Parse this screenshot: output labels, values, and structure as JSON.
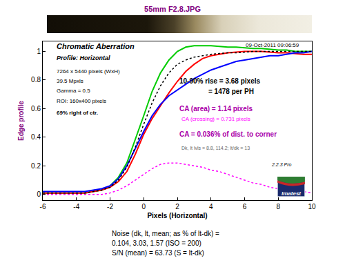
{
  "chart_data": {
    "type": "line",
    "title": "55mm F2.8.JPG",
    "x_label": "Pixels (Horizontal)",
    "y_label": "Edge profile",
    "x": [
      -6,
      -5.5,
      -5,
      -4.5,
      -4,
      -3.5,
      -3,
      -2.5,
      -2,
      -1.5,
      -1,
      -0.5,
      0,
      0.5,
      1,
      1.5,
      2,
      2.5,
      3,
      3.5,
      4,
      4.5,
      5,
      5.5,
      6,
      6.5,
      7,
      7.5,
      8,
      8.5,
      9,
      9.5,
      10
    ],
    "series": [
      {
        "color": "#00cc00",
        "line_style": "solid",
        "values": [
          0.01,
          0.01,
          0.01,
          0.01,
          0.01,
          0.01,
          0.02,
          0.03,
          0.06,
          0.12,
          0.22,
          0.38,
          0.55,
          0.72,
          0.85,
          0.94,
          1.0,
          1.03,
          1.04,
          1.04,
          1.04,
          1.035,
          1.03,
          1.03,
          1.025,
          1.02,
          1.02,
          1.015,
          1.01,
          1.01,
          1.0,
          1.0,
          1.0
        ]
      },
      {
        "color": "#ff0000",
        "line_style": "solid",
        "values": [
          0.01,
          0.01,
          0.01,
          0.01,
          0.01,
          0.01,
          0.02,
          0.03,
          0.05,
          0.09,
          0.16,
          0.28,
          0.42,
          0.53,
          0.62,
          0.71,
          0.79,
          0.86,
          0.91,
          0.95,
          0.97,
          0.98,
          0.99,
          0.995,
          1.0,
          1.0,
          1.0,
          0.995,
          0.99,
          0.99,
          0.985,
          0.98,
          0.98
        ]
      },
      {
        "color": "#0000ff",
        "line_style": "solid",
        "values": [
          0.02,
          0.02,
          0.02,
          0.02,
          0.02,
          0.02,
          0.03,
          0.04,
          0.06,
          0.11,
          0.2,
          0.32,
          0.44,
          0.55,
          0.63,
          0.69,
          0.73,
          0.77,
          0.81,
          0.84,
          0.87,
          0.89,
          0.91,
          0.93,
          0.94,
          0.95,
          0.96,
          0.97,
          0.97,
          0.98,
          0.99,
          0.99,
          1.0
        ]
      },
      {
        "color": "#000000",
        "line_style": "dotted",
        "values": [
          0.01,
          0.01,
          0.01,
          0.01,
          0.01,
          0.01,
          0.02,
          0.03,
          0.05,
          0.1,
          0.19,
          0.33,
          0.49,
          0.64,
          0.76,
          0.85,
          0.91,
          0.94,
          0.96,
          0.97,
          0.98,
          0.985,
          0.99,
          0.99,
          0.995,
          1.0,
          1.0,
          1.0,
          1.0,
          1.0,
          1.0,
          1.0,
          1.0
        ]
      },
      {
        "color": "#ff00ff",
        "line_style": "dotted",
        "values": [
          0,
          0,
          0,
          0,
          0,
          0,
          0,
          0,
          0.01,
          0.03,
          0.06,
          0.1,
          0.14,
          0.18,
          0.21,
          0.22,
          0.22,
          0.21,
          0.2,
          0.19,
          0.17,
          0.16,
          0.14,
          0.12,
          0.1,
          0.08,
          0.07,
          0.05,
          0.04,
          0.03,
          0.02,
          0.02,
          0.01
        ]
      }
    ],
    "xlim": [
      -6,
      10
    ],
    "ylim": [
      -0.04,
      1.07
    ],
    "xticks": [
      -6,
      -4,
      -2,
      0,
      2,
      4,
      6,
      8,
      10
    ],
    "yticks": [
      0,
      0.2,
      0.4,
      0.6,
      0.8,
      1
    ],
    "grid": false,
    "annotations": [
      "Chromatic Aberration",
      "Profile: Horizontal",
      "7264 x 5440 pixels (WxH)",
      "39.5 Mpxls",
      "Gamma = 0.5",
      "ROI: 160x400 pixels",
      "69% right of ctr.",
      "09-Oct-2011 09:06:59",
      "10-90% rise = 3.68 pixels",
      "= 1478 per PH",
      "CA (area) = 1.14 pixels",
      "CA (crossing) = 0.731 pixels",
      "CA = 0.036% of dist. to corner",
      "Dk, lt lvls = 8.8, 114.2; lt/dk = 13",
      "2.2.3 Pro",
      "Imatest"
    ],
    "notes": [
      "Noise (dk, lt, mean; as % of lt-dk) =",
      "0.104, 3.03, 1.57 (ISO = 200)",
      "S/N (mean) = 63.73 (S = lt-dk)"
    ]
  }
}
